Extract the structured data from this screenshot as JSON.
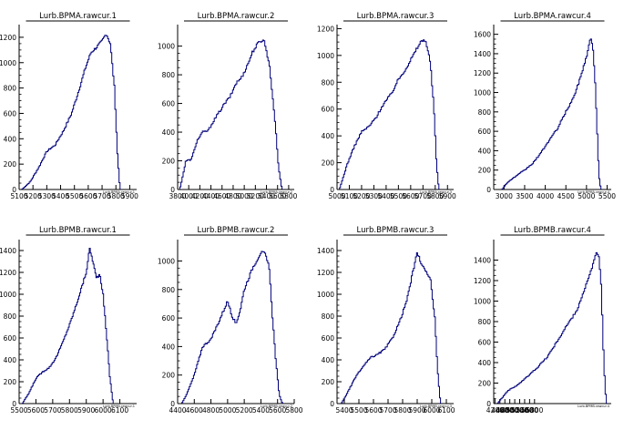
{
  "colors": {
    "background": "#ffffff",
    "histogram_line": "#00007a",
    "axis": "#000000",
    "title_box": "#ffffff"
  },
  "chart_data": [
    {
      "type": "bar",
      "title": "Lurb.BPMA.rawcur.1",
      "xlabel": "Lurb.BPMA.rawcur.1",
      "ylabel": "",
      "xlim": [
        5100,
        5950
      ],
      "ylim": [
        0,
        1300
      ],
      "xticks": [
        5100,
        5200,
        5300,
        5400,
        5500,
        5600,
        5700,
        5800,
        5900
      ],
      "xtick_labels": [
        "5100",
        "5200",
        "5300",
        "5400",
        "5500",
        "5600",
        "5700",
        "5800",
        "5900"
      ],
      "yticks": [
        0,
        200,
        400,
        600,
        800,
        1000,
        1200
      ],
      "xpts": [
        5120,
        5180,
        5240,
        5300,
        5360,
        5420,
        5480,
        5540,
        5580,
        5620,
        5660,
        5700,
        5730,
        5760,
        5790,
        5810,
        5830
      ],
      "ypts": [
        0,
        60,
        170,
        300,
        350,
        460,
        600,
        810,
        960,
        1080,
        1120,
        1170,
        1230,
        1150,
        800,
        300,
        0
      ]
    },
    {
      "type": "bar",
      "title": "Lurb.BPMA.rawcur.2",
      "xlabel": "Lurb.BPMA.rawcur.2",
      "ylabel": "",
      "xlim": [
        3800,
        5900
      ],
      "ylim": [
        0,
        1150
      ],
      "xticks": [
        3800,
        4000,
        4200,
        4400,
        4600,
        4800,
        5000,
        5200,
        5400,
        5600,
        5800
      ],
      "xtick_labels": [
        "3800",
        "4000",
        "4200",
        "4400",
        "4600",
        "4800",
        "5000",
        "5200",
        "5400",
        "5600",
        "5800"
      ],
      "yticks": [
        0,
        200,
        400,
        600,
        800,
        1000
      ],
      "xpts": [
        3840,
        3950,
        4050,
        4150,
        4250,
        4350,
        4450,
        4550,
        4650,
        4750,
        4850,
        4950,
        5050,
        5150,
        5250,
        5350,
        5450,
        5550,
        5620,
        5680
      ],
      "ypts": [
        0,
        200,
        210,
        340,
        400,
        410,
        480,
        540,
        600,
        650,
        740,
        780,
        860,
        960,
        1020,
        1050,
        880,
        500,
        150,
        0
      ]
    },
    {
      "type": "bar",
      "title": "Lurb.BPMA.rawcur.3",
      "xlabel": "Lurb.BPMA.rawcur.3",
      "ylabel": "",
      "xlim": [
        5000,
        5950
      ],
      "ylim": [
        0,
        1230
      ],
      "xticks": [
        5000,
        5100,
        5200,
        5300,
        5400,
        5500,
        5600,
        5700,
        5800,
        5900
      ],
      "xtick_labels": [
        "5000",
        "5100",
        "5200",
        "5300",
        "5400",
        "5500",
        "5600",
        "5700",
        "5800",
        "5900"
      ],
      "yticks": [
        0,
        200,
        400,
        600,
        800,
        1000,
        1200
      ],
      "xpts": [
        5020,
        5080,
        5140,
        5200,
        5260,
        5320,
        5380,
        5440,
        5500,
        5560,
        5620,
        5680,
        5720,
        5760,
        5790,
        5810,
        5830
      ],
      "ypts": [
        0,
        180,
        320,
        430,
        470,
        540,
        640,
        710,
        820,
        900,
        1000,
        1100,
        1120,
        950,
        600,
        200,
        0
      ]
    },
    {
      "type": "bar",
      "title": "Lurb.BPMA.rawcur.4",
      "xlabel": "Lurb.BPMA.rawcur.4",
      "ylabel": "",
      "xlim": [
        2750,
        5600
      ],
      "ylim": [
        0,
        1700
      ],
      "xticks": [
        3000,
        3500,
        4000,
        4500,
        5000,
        5500
      ],
      "xtick_labels": [
        "3000",
        "3500",
        "4000",
        "4500",
        "5000",
        "5500"
      ],
      "yticks": [
        0,
        200,
        400,
        600,
        800,
        1000,
        1200,
        1400,
        1600
      ],
      "xpts": [
        2950,
        3100,
        3300,
        3500,
        3700,
        3900,
        4100,
        4300,
        4500,
        4700,
        4850,
        5000,
        5100,
        5150,
        5200,
        5250,
        5300,
        5350
      ],
      "ypts": [
        0,
        80,
        140,
        200,
        270,
        380,
        510,
        630,
        800,
        960,
        1150,
        1370,
        1560,
        1500,
        1200,
        700,
        150,
        0
      ]
    },
    {
      "type": "bar",
      "title": "Lurb.BPMB.rawcur.1",
      "xlabel": "Lurb.BPMB.rawcur.1",
      "ylabel": "",
      "xlim": [
        5500,
        6200
      ],
      "ylim": [
        0,
        1500
      ],
      "xticks": [
        5500,
        5600,
        5700,
        5800,
        5900,
        6000,
        6100
      ],
      "xtick_labels": [
        "5500",
        "5600",
        "5700",
        "5800",
        "5900",
        "6000",
        "6100"
      ],
      "yticks": [
        0,
        200,
        400,
        600,
        800,
        1000,
        1200,
        1400
      ],
      "xpts": [
        5520,
        5560,
        5600,
        5640,
        5680,
        5720,
        5760,
        5800,
        5840,
        5870,
        5900,
        5920,
        5940,
        5960,
        5980,
        6000,
        6020,
        6040,
        6060
      ],
      "ypts": [
        0,
        100,
        230,
        290,
        330,
        420,
        560,
        720,
        900,
        1050,
        1200,
        1420,
        1300,
        1150,
        1180,
        1000,
        650,
        250,
        0
      ]
    },
    {
      "type": "bar",
      "title": "Lurb.BPMB.rawcur.2",
      "xlabel": "Lurb.BPMB.rawcur.2",
      "ylabel": "",
      "xlim": [
        4400,
        5800
      ],
      "ylim": [
        0,
        1150
      ],
      "xticks": [
        4400,
        4600,
        4800,
        5000,
        5200,
        5400,
        5600,
        5800
      ],
      "xtick_labels": [
        "4400",
        "4600",
        "4800",
        "5000",
        "5200",
        "5400",
        "5600",
        "5800"
      ],
      "yticks": [
        0,
        200,
        400,
        600,
        800,
        1000
      ],
      "xpts": [
        4450,
        4520,
        4600,
        4700,
        4800,
        4900,
        5000,
        5050,
        5100,
        5150,
        5200,
        5300,
        5400,
        5450,
        5500,
        5540,
        5580,
        5620,
        5660
      ],
      "ypts": [
        0,
        80,
        200,
        400,
        450,
        580,
        720,
        620,
        560,
        650,
        800,
        950,
        1060,
        1050,
        950,
        600,
        300,
        60,
        0
      ]
    },
    {
      "type": "bar",
      "title": "Lurb.BPMB.rawcur.3",
      "xlabel": "Lurb.BPMB.rawcur.3",
      "ylabel": "",
      "xlim": [
        5350,
        6150
      ],
      "ylim": [
        0,
        1500
      ],
      "xticks": [
        5400,
        5500,
        5600,
        5700,
        5800,
        5900,
        6000,
        6100
      ],
      "xtick_labels": [
        "5400",
        "5500",
        "5600",
        "5700",
        "5800",
        "5900",
        "6000",
        "6100"
      ],
      "yticks": [
        0,
        200,
        400,
        600,
        800,
        1000,
        1200,
        1400
      ],
      "xpts": [
        5380,
        5430,
        5480,
        5530,
        5580,
        5630,
        5680,
        5730,
        5780,
        5830,
        5870,
        5900,
        5930,
        5960,
        5990,
        6020,
        6040,
        6060
      ],
      "ypts": [
        0,
        120,
        250,
        340,
        420,
        450,
        500,
        600,
        750,
        950,
        1200,
        1380,
        1280,
        1200,
        1150,
        800,
        300,
        0
      ]
    },
    {
      "type": "bar",
      "title": "Lurb.BPMB.rawcur.4",
      "xlabel": "Lurb.BPMB.rawcur.4",
      "ylabel": "",
      "xlim": [
        4150,
        8900
      ],
      "ylim": [
        0,
        1600
      ],
      "xticks": [
        4200,
        4400,
        4600,
        4800,
        5000,
        5200,
        5400,
        5600,
        5800
      ],
      "xtick_labels": [
        "4200",
        "4400",
        "4600",
        "4800",
        "5000",
        "5200",
        "5400",
        "5600",
        "5800"
      ],
      "yticks": [
        0,
        200,
        400,
        600,
        800,
        1000,
        1200,
        1400
      ],
      "xpts": [
        4300,
        4700,
        5100,
        5500,
        5900,
        6300,
        6700,
        7100,
        7500,
        7800,
        8100,
        8300,
        8400,
        8500,
        8600,
        8700
      ],
      "ypts": [
        0,
        120,
        180,
        260,
        350,
        450,
        600,
        760,
        900,
        1100,
        1300,
        1480,
        1420,
        1150,
        400,
        0
      ]
    }
  ]
}
